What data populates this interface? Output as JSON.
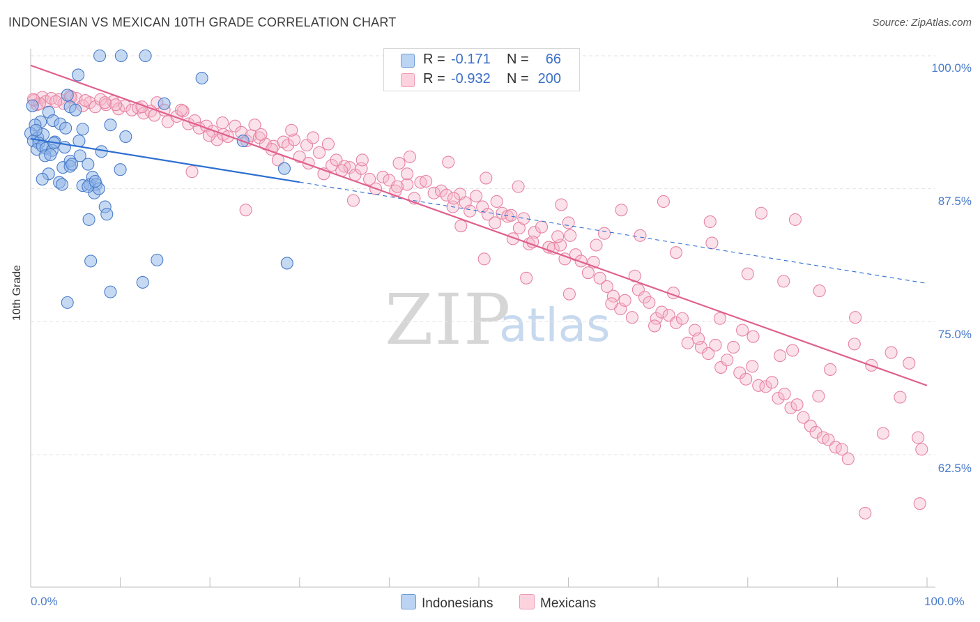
{
  "header": {
    "title": "INDONESIAN VS MEXICAN 10TH GRADE CORRELATION CHART",
    "source": "Source: ZipAtlas.com"
  },
  "watermark": {
    "zip": "ZIP",
    "atlas": "atlas"
  },
  "legend": {
    "series": [
      {
        "name": "Indonesians",
        "r_label": "R =",
        "r_value": "-0.171",
        "n_label": "N =",
        "n_value": "66",
        "color": "#8db4e8",
        "stroke": "#4a7cc9",
        "line": "#2e6fd0"
      },
      {
        "name": "Mexicans",
        "r_label": "R =",
        "r_value": "-0.932",
        "n_label": "N =",
        "n_value": "200",
        "color": "#f6b8cb",
        "stroke": "#e683a4",
        "line": "#e0608d"
      }
    ]
  },
  "chart_data": {
    "type": "scatter",
    "title": "INDONESIAN VS MEXICAN 10TH GRADE CORRELATION CHART",
    "xlabel": "",
    "ylabel": "10th Grade",
    "xlim": [
      0,
      100
    ],
    "ylim": [
      52,
      101
    ],
    "y_ticks": [
      {
        "value": 100.0,
        "label": "100.0%"
      },
      {
        "value": 87.5,
        "label": "87.5%"
      },
      {
        "value": 75.0,
        "label": "75.0%"
      },
      {
        "value": 62.5,
        "label": "62.5%"
      }
    ],
    "x_tick_labels": [
      {
        "value": 0,
        "label": "0.0%"
      },
      {
        "value": 100,
        "label": "100.0%"
      }
    ],
    "x_minor_ticks": [
      0,
      10,
      20,
      30,
      40,
      50,
      60,
      70,
      80,
      90,
      100
    ],
    "series": [
      {
        "name": "Indonesians",
        "r": -0.171,
        "n": 66,
        "trend": {
          "x0": 0,
          "y0": 92.2,
          "x1": 100,
          "y1": 78.6,
          "solid_until": 30
        },
        "points": [
          [
            7.7,
            100
          ],
          [
            10.1,
            100
          ],
          [
            12.8,
            100
          ],
          [
            5.3,
            98.2
          ],
          [
            19.1,
            97.9
          ],
          [
            4.1,
            96.3
          ],
          [
            14.9,
            95.5
          ],
          [
            2.0,
            94.7
          ],
          [
            4.4,
            95.2
          ],
          [
            5.0,
            94.9
          ],
          [
            0.2,
            95.3
          ],
          [
            1.1,
            93.8
          ],
          [
            0.5,
            93.5
          ],
          [
            2.5,
            93.9
          ],
          [
            3.3,
            93.6
          ],
          [
            5.8,
            93.1
          ],
          [
            8.9,
            93.5
          ],
          [
            0.0,
            92.7
          ],
          [
            0.8,
            92.3
          ],
          [
            1.4,
            92.6
          ],
          [
            0.3,
            92.0
          ],
          [
            0.9,
            91.8
          ],
          [
            2.7,
            91.9
          ],
          [
            5.4,
            92.0
          ],
          [
            10.6,
            92.4
          ],
          [
            23.7,
            92.0
          ],
          [
            0.7,
            91.2
          ],
          [
            1.3,
            91.5
          ],
          [
            1.7,
            91.3
          ],
          [
            2.4,
            91.1
          ],
          [
            3.8,
            91.4
          ],
          [
            7.9,
            91.0
          ],
          [
            5.5,
            90.6
          ],
          [
            1.6,
            90.6
          ],
          [
            2.2,
            90.7
          ],
          [
            4.4,
            90.1
          ],
          [
            6.4,
            89.8
          ],
          [
            3.6,
            89.5
          ],
          [
            4.4,
            89.6
          ],
          [
            4.6,
            89.8
          ],
          [
            10.0,
            89.3
          ],
          [
            28.3,
            89.4
          ],
          [
            2.0,
            88.9
          ],
          [
            1.3,
            88.4
          ],
          [
            6.9,
            88.6
          ],
          [
            3.2,
            88.1
          ],
          [
            3.5,
            87.9
          ],
          [
            5.8,
            87.8
          ],
          [
            6.6,
            87.9
          ],
          [
            7.3,
            87.9
          ],
          [
            7.1,
            87.1
          ],
          [
            7.6,
            87.5
          ],
          [
            8.3,
            85.8
          ],
          [
            8.5,
            85.1
          ],
          [
            6.5,
            84.6
          ],
          [
            6.7,
            80.7
          ],
          [
            14.1,
            80.8
          ],
          [
            28.6,
            80.5
          ],
          [
            12.5,
            78.7
          ],
          [
            8.9,
            77.8
          ],
          [
            4.1,
            76.8
          ],
          [
            6.4,
            87.7
          ],
          [
            0.6,
            93.0
          ],
          [
            2.6,
            91.8
          ],
          [
            3.9,
            93.2
          ],
          [
            7.2,
            88.2
          ]
        ]
      },
      {
        "name": "Mexicans",
        "r": -0.932,
        "n": 200,
        "trend": {
          "x0": 0,
          "y0": 99.1,
          "x1": 100,
          "y1": 69.0
        },
        "points": [
          [
            0.4,
            95.8
          ],
          [
            0.7,
            95.4
          ],
          [
            1.3,
            96.1
          ],
          [
            1.7,
            95.7
          ],
          [
            2.3,
            96.0
          ],
          [
            3.2,
            95.9
          ],
          [
            3.7,
            95.5
          ],
          [
            4.4,
            96.2
          ],
          [
            5.1,
            96.0
          ],
          [
            5.8,
            95.3
          ],
          [
            6.6,
            95.6
          ],
          [
            7.2,
            95.2
          ],
          [
            7.8,
            95.9
          ],
          [
            8.4,
            95.4
          ],
          [
            9.2,
            95.7
          ],
          [
            9.8,
            95.0
          ],
          [
            10.5,
            95.3
          ],
          [
            11.3,
            94.9
          ],
          [
            12.0,
            95.1
          ],
          [
            12.6,
            94.6
          ],
          [
            13.4,
            94.8
          ],
          [
            14.1,
            95.6
          ],
          [
            14.9,
            94.9
          ],
          [
            15.3,
            93.8
          ],
          [
            16.3,
            94.3
          ],
          [
            17.0,
            94.8
          ],
          [
            17.6,
            93.6
          ],
          [
            18.3,
            93.9
          ],
          [
            18.8,
            93.2
          ],
          [
            19.6,
            93.4
          ],
          [
            20.3,
            92.9
          ],
          [
            20.8,
            92.1
          ],
          [
            21.5,
            92.6
          ],
          [
            22.0,
            92.4
          ],
          [
            22.8,
            93.4
          ],
          [
            23.5,
            92.8
          ],
          [
            24.1,
            92.0
          ],
          [
            24.6,
            92.5
          ],
          [
            25.0,
            93.5
          ],
          [
            25.5,
            92.3
          ],
          [
            26.2,
            91.7
          ],
          [
            27.1,
            91.5
          ],
          [
            27.6,
            90.2
          ],
          [
            28.2,
            91.9
          ],
          [
            28.7,
            91.6
          ],
          [
            29.4,
            92.1
          ],
          [
            30.0,
            90.5
          ],
          [
            30.8,
            91.6
          ],
          [
            31.5,
            92.3
          ],
          [
            32.2,
            90.9
          ],
          [
            32.7,
            88.9
          ],
          [
            33.6,
            89.7
          ],
          [
            34.1,
            90.2
          ],
          [
            35.0,
            89.6
          ],
          [
            35.6,
            89.5
          ],
          [
            36.2,
            88.8
          ],
          [
            36.9,
            89.4
          ],
          [
            37.8,
            88.4
          ],
          [
            38.5,
            87.5
          ],
          [
            39.3,
            88.6
          ],
          [
            40.0,
            88.3
          ],
          [
            40.7,
            87.3
          ],
          [
            41.1,
            89.9
          ],
          [
            42.0,
            87.9
          ],
          [
            42.8,
            86.6
          ],
          [
            43.5,
            88.1
          ],
          [
            44.1,
            88.2
          ],
          [
            45.0,
            87.1
          ],
          [
            45.8,
            87.3
          ],
          [
            46.4,
            86.9
          ],
          [
            47.1,
            85.8
          ],
          [
            47.9,
            87.0
          ],
          [
            48.5,
            86.2
          ],
          [
            49.0,
            85.4
          ],
          [
            49.7,
            86.8
          ],
          [
            50.4,
            85.8
          ],
          [
            51.0,
            85.1
          ],
          [
            51.8,
            84.3
          ],
          [
            52.6,
            85.2
          ],
          [
            53.2,
            84.9
          ],
          [
            53.8,
            82.8
          ],
          [
            54.5,
            83.8
          ],
          [
            55.0,
            84.7
          ],
          [
            55.6,
            82.3
          ],
          [
            56.2,
            83.4
          ],
          [
            57.0,
            83.9
          ],
          [
            57.8,
            82.0
          ],
          [
            58.3,
            81.9
          ],
          [
            59.1,
            82.2
          ],
          [
            59.6,
            80.9
          ],
          [
            60.2,
            83.1
          ],
          [
            60.8,
            81.3
          ],
          [
            61.4,
            80.7
          ],
          [
            62.2,
            79.6
          ],
          [
            62.8,
            80.6
          ],
          [
            63.5,
            79.1
          ],
          [
            64.3,
            78.3
          ],
          [
            65.0,
            77.4
          ],
          [
            65.8,
            76.2
          ],
          [
            66.3,
            77.0
          ],
          [
            67.1,
            75.4
          ],
          [
            67.8,
            78.0
          ],
          [
            68.5,
            77.3
          ],
          [
            69.0,
            76.8
          ],
          [
            69.8,
            75.3
          ],
          [
            70.4,
            75.9
          ],
          [
            71.2,
            75.6
          ],
          [
            72.0,
            74.9
          ],
          [
            72.7,
            75.3
          ],
          [
            73.3,
            73.0
          ],
          [
            74.1,
            74.2
          ],
          [
            74.8,
            72.6
          ],
          [
            75.6,
            72.0
          ],
          [
            76.4,
            72.8
          ],
          [
            77.0,
            70.7
          ],
          [
            77.7,
            71.4
          ],
          [
            78.4,
            72.6
          ],
          [
            79.1,
            70.2
          ],
          [
            79.8,
            69.6
          ],
          [
            80.5,
            70.8
          ],
          [
            81.2,
            69.0
          ],
          [
            82.0,
            68.9
          ],
          [
            82.7,
            69.3
          ],
          [
            83.4,
            67.8
          ],
          [
            84.1,
            68.2
          ],
          [
            84.8,
            66.9
          ],
          [
            85.5,
            67.2
          ],
          [
            86.2,
            66.0
          ],
          [
            87.0,
            65.2
          ],
          [
            87.6,
            64.6
          ],
          [
            88.4,
            64.1
          ],
          [
            89.0,
            63.9
          ],
          [
            89.8,
            63.2
          ],
          [
            90.5,
            63.0
          ],
          [
            91.2,
            62.1
          ],
          [
            18.0,
            89.1
          ],
          [
            24.0,
            85.5
          ],
          [
            31.0,
            89.9
          ],
          [
            36.0,
            86.4
          ],
          [
            42.0,
            88.9
          ],
          [
            48.0,
            84.0
          ],
          [
            52.0,
            86.3
          ],
          [
            56.0,
            82.5
          ],
          [
            60.0,
            84.3
          ],
          [
            64.0,
            83.3
          ],
          [
            68.0,
            83.1
          ],
          [
            72.0,
            81.5
          ],
          [
            76.0,
            82.4
          ],
          [
            80.0,
            79.5
          ],
          [
            84.0,
            78.8
          ],
          [
            88.0,
            77.9
          ],
          [
            92.0,
            75.4
          ],
          [
            96.0,
            72.1
          ],
          [
            98.0,
            71.1
          ],
          [
            99.0,
            64.1
          ],
          [
            99.4,
            63.0
          ],
          [
            99.2,
            57.9
          ],
          [
            93.1,
            57.0
          ],
          [
            81.5,
            85.2
          ],
          [
            85.3,
            84.6
          ],
          [
            75.8,
            84.4
          ],
          [
            70.6,
            86.3
          ],
          [
            65.9,
            85.5
          ],
          [
            59.2,
            86.0
          ],
          [
            54.4,
            87.7
          ],
          [
            50.8,
            88.5
          ],
          [
            46.6,
            90.0
          ],
          [
            42.3,
            90.5
          ],
          [
            37.0,
            90.2
          ],
          [
            33.2,
            91.7
          ],
          [
            29.1,
            93.0
          ],
          [
            25.7,
            92.6
          ],
          [
            21.4,
            93.7
          ],
          [
            16.8,
            94.9
          ],
          [
            12.4,
            95.2
          ],
          [
            8.3,
            95.6
          ],
          [
            4.5,
            96.1
          ],
          [
            1.0,
            95.5
          ],
          [
            0.3,
            95.9
          ],
          [
            2.8,
            95.7
          ],
          [
            6.1,
            95.8
          ],
          [
            9.5,
            95.4
          ],
          [
            13.8,
            94.4
          ],
          [
            19.9,
            92.5
          ],
          [
            26.9,
            91.2
          ],
          [
            34.7,
            89.2
          ],
          [
            40.9,
            87.7
          ],
          [
            47.2,
            86.6
          ],
          [
            53.6,
            85.0
          ],
          [
            58.8,
            83.0
          ],
          [
            63.1,
            82.2
          ],
          [
            67.4,
            79.3
          ],
          [
            71.7,
            77.7
          ],
          [
            76.9,
            75.3
          ],
          [
            80.6,
            73.6
          ],
          [
            85.0,
            72.3
          ],
          [
            89.2,
            70.5
          ],
          [
            93.8,
            70.9
          ],
          [
            97.0,
            67.9
          ],
          [
            95.1,
            64.5
          ],
          [
            91.9,
            72.9
          ],
          [
            87.9,
            68.0
          ],
          [
            83.6,
            71.8
          ],
          [
            79.4,
            74.2
          ],
          [
            74.5,
            73.4
          ],
          [
            69.6,
            74.6
          ],
          [
            64.8,
            76.7
          ],
          [
            60.1,
            77.6
          ],
          [
            55.3,
            79.1
          ],
          [
            50.6,
            80.9
          ]
        ]
      }
    ]
  }
}
